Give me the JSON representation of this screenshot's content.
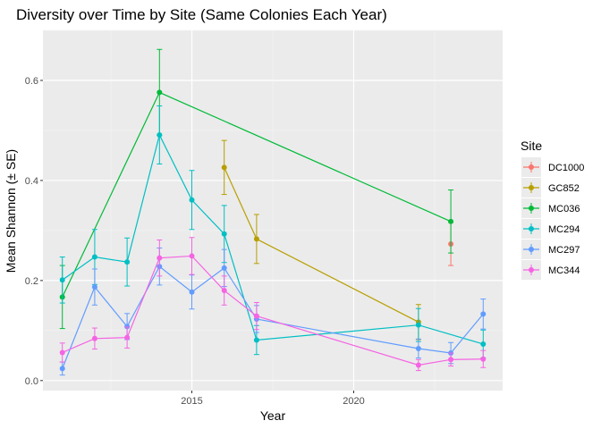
{
  "chart_data": {
    "type": "line",
    "title": "Diversity over Time by Site (Same Colonies Each Year)",
    "xlabel": "Year",
    "ylabel": "Mean Shannon (± SE)",
    "xlim": [
      2010.4,
      2024.6
    ],
    "ylim": [
      -0.02,
      0.7
    ],
    "xticks": [
      2015,
      2020
    ],
    "yticks": [
      0.0,
      0.2,
      0.4,
      0.6
    ],
    "ytick_labels": [
      "0.0",
      "0.2",
      "0.4",
      "0.6"
    ],
    "grid": true,
    "legend_title": "Site",
    "legend_position": "right",
    "series": [
      {
        "name": "DC1000",
        "color": "#F8766D",
        "points": [
          {
            "x": 2023,
            "y": 0.273,
            "se": 0.043
          }
        ]
      },
      {
        "name": "GC852",
        "color": "#B79F00",
        "points": [
          {
            "x": 2016,
            "y": 0.426,
            "se": 0.054
          },
          {
            "x": 2017,
            "y": 0.283,
            "se": 0.049
          },
          {
            "x": 2022,
            "y": 0.117,
            "se": 0.035
          }
        ]
      },
      {
        "name": "MC036",
        "color": "#00BA38",
        "points": [
          {
            "x": 2011,
            "y": 0.167,
            "se": 0.063
          },
          {
            "x": 2014,
            "y": 0.576,
            "se": 0.086
          },
          {
            "x": 2023,
            "y": 0.318,
            "se": 0.063
          }
        ]
      },
      {
        "name": "MC294",
        "color": "#00BFC4",
        "points": [
          {
            "x": 2011,
            "y": 0.201,
            "se": 0.046
          },
          {
            "x": 2012,
            "y": 0.247,
            "se": 0.055
          },
          {
            "x": 2013,
            "y": 0.237,
            "se": 0.048
          },
          {
            "x": 2014,
            "y": 0.491,
            "se": 0.058
          },
          {
            "x": 2015,
            "y": 0.361,
            "se": 0.059
          },
          {
            "x": 2016,
            "y": 0.293,
            "se": 0.057
          },
          {
            "x": 2017,
            "y": 0.081,
            "se": 0.029
          },
          {
            "x": 2022,
            "y": 0.111,
            "se": 0.033
          },
          {
            "x": 2024,
            "y": 0.073,
            "se": 0.028
          }
        ]
      },
      {
        "name": "MC297",
        "color": "#619CFF",
        "points": [
          {
            "x": 2011,
            "y": 0.024,
            "se": 0.013
          },
          {
            "x": 2012,
            "y": 0.187,
            "se": 0.036
          },
          {
            "x": 2013,
            "y": 0.108,
            "se": 0.026
          },
          {
            "x": 2014,
            "y": 0.228,
            "se": 0.037
          },
          {
            "x": 2015,
            "y": 0.177,
            "se": 0.034
          },
          {
            "x": 2016,
            "y": 0.225,
            "se": 0.037
          },
          {
            "x": 2017,
            "y": 0.123,
            "se": 0.027
          },
          {
            "x": 2022,
            "y": 0.064,
            "se": 0.019
          },
          {
            "x": 2023,
            "y": 0.055,
            "se": 0.021
          },
          {
            "x": 2024,
            "y": 0.133,
            "se": 0.03
          }
        ]
      },
      {
        "name": "MC344",
        "color": "#F564E3",
        "points": [
          {
            "x": 2011,
            "y": 0.056,
            "se": 0.019
          },
          {
            "x": 2012,
            "y": 0.084,
            "se": 0.021
          },
          {
            "x": 2013,
            "y": 0.086,
            "se": 0.021
          },
          {
            "x": 2014,
            "y": 0.245,
            "se": 0.036
          },
          {
            "x": 2015,
            "y": 0.249,
            "se": 0.037
          },
          {
            "x": 2016,
            "y": 0.18,
            "se": 0.029
          },
          {
            "x": 2017,
            "y": 0.129,
            "se": 0.027
          },
          {
            "x": 2022,
            "y": 0.031,
            "se": 0.011
          },
          {
            "x": 2023,
            "y": 0.042,
            "se": 0.013
          },
          {
            "x": 2024,
            "y": 0.043,
            "se": 0.017
          }
        ]
      }
    ]
  }
}
